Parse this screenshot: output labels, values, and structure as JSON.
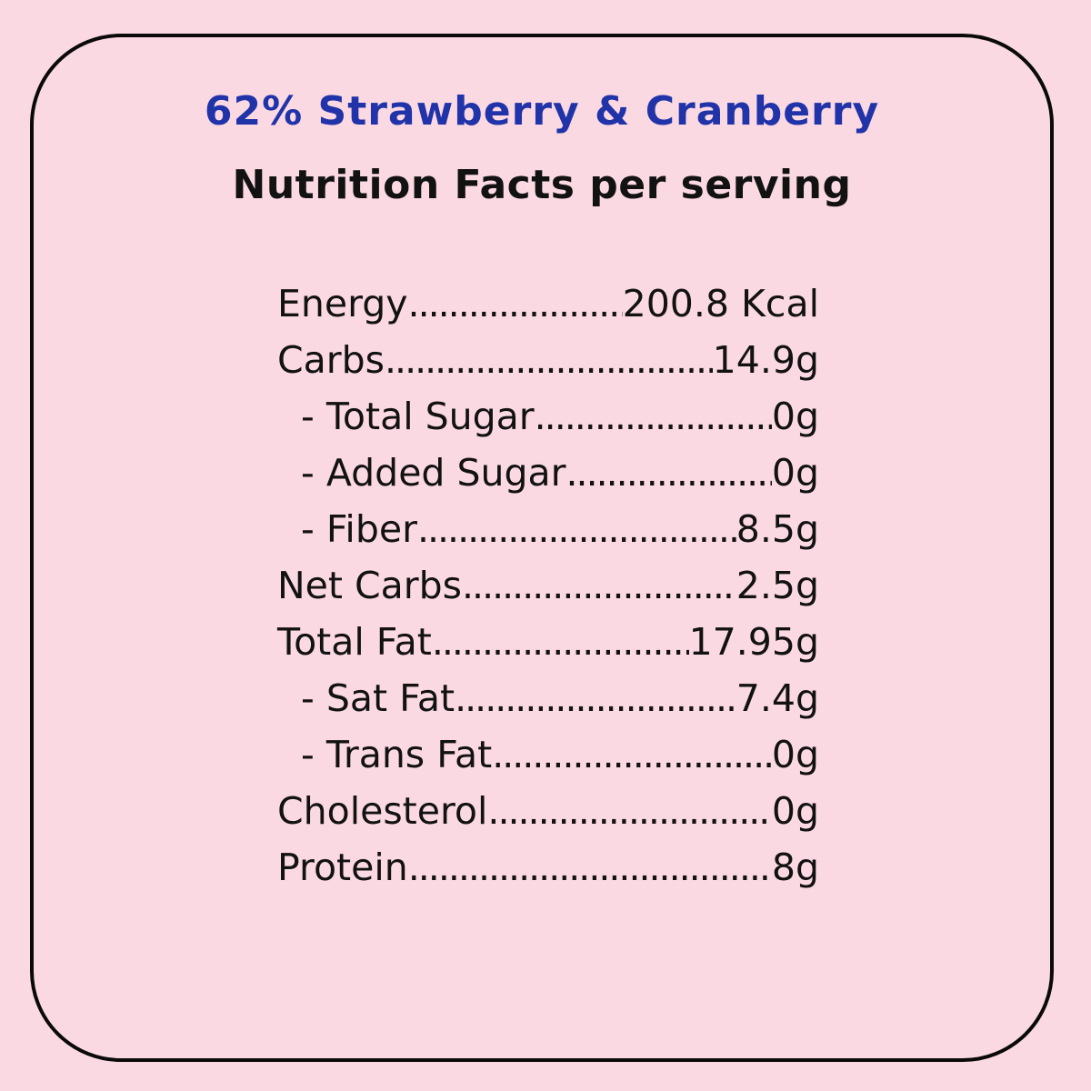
{
  "page": {
    "background_color": "#fbd9e3",
    "border_color": "#0a0a0a"
  },
  "header": {
    "title": "62% Strawberry & Cranberry",
    "title_color": "#2133a8",
    "subtitle": "Nutrition Facts per serving",
    "subtitle_color": "#121212"
  },
  "leader_dots": "........................................................................",
  "nutrition": {
    "rows": [
      {
        "label": "Energy",
        "value": "200.8 Kcal",
        "indent": false
      },
      {
        "label": "Carbs",
        "value": "14.9g",
        "indent": false
      },
      {
        "label": "- Total Sugar",
        "value": "0g",
        "indent": true
      },
      {
        "label": "- Added Sugar",
        "value": "0g",
        "indent": true
      },
      {
        "label": "- Fiber",
        "value": "8.5g",
        "indent": true
      },
      {
        "label": "Net Carbs",
        "value": "2.5g",
        "indent": false
      },
      {
        "label": "Total Fat",
        "value": "17.95g",
        "indent": false
      },
      {
        "label": "- Sat Fat",
        "value": "7.4g",
        "indent": true
      },
      {
        "label": "- Trans Fat",
        "value": "0g",
        "indent": true
      },
      {
        "label": "Cholesterol",
        "value": "0g",
        "indent": false
      },
      {
        "label": "Protein",
        "value": "8g",
        "indent": false
      }
    ]
  }
}
